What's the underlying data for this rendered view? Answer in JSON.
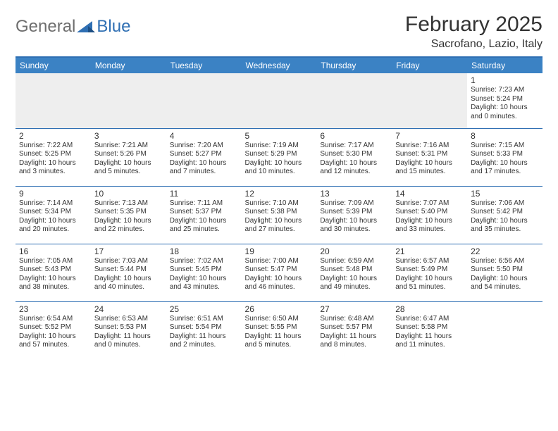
{
  "logo": {
    "general": "General",
    "blue": "Blue"
  },
  "title": "February 2025",
  "location": "Sacrofano, Lazio, Italy",
  "colors": {
    "header_bg": "#3b82c4",
    "header_border": "#2f6fb3",
    "text": "#333333",
    "logo_gray": "#6e6e6e",
    "logo_blue": "#2f6fb3",
    "empty_bg": "#eeeeee"
  },
  "day_headers": [
    "Sunday",
    "Monday",
    "Tuesday",
    "Wednesday",
    "Thursday",
    "Friday",
    "Saturday"
  ],
  "weeks": [
    [
      null,
      null,
      null,
      null,
      null,
      null,
      {
        "n": "1",
        "sr": "Sunrise: 7:23 AM",
        "ss": "Sunset: 5:24 PM",
        "dl1": "Daylight: 10 hours",
        "dl2": "and 0 minutes."
      }
    ],
    [
      {
        "n": "2",
        "sr": "Sunrise: 7:22 AM",
        "ss": "Sunset: 5:25 PM",
        "dl1": "Daylight: 10 hours",
        "dl2": "and 3 minutes."
      },
      {
        "n": "3",
        "sr": "Sunrise: 7:21 AM",
        "ss": "Sunset: 5:26 PM",
        "dl1": "Daylight: 10 hours",
        "dl2": "and 5 minutes."
      },
      {
        "n": "4",
        "sr": "Sunrise: 7:20 AM",
        "ss": "Sunset: 5:27 PM",
        "dl1": "Daylight: 10 hours",
        "dl2": "and 7 minutes."
      },
      {
        "n": "5",
        "sr": "Sunrise: 7:19 AM",
        "ss": "Sunset: 5:29 PM",
        "dl1": "Daylight: 10 hours",
        "dl2": "and 10 minutes."
      },
      {
        "n": "6",
        "sr": "Sunrise: 7:17 AM",
        "ss": "Sunset: 5:30 PM",
        "dl1": "Daylight: 10 hours",
        "dl2": "and 12 minutes."
      },
      {
        "n": "7",
        "sr": "Sunrise: 7:16 AM",
        "ss": "Sunset: 5:31 PM",
        "dl1": "Daylight: 10 hours",
        "dl2": "and 15 minutes."
      },
      {
        "n": "8",
        "sr": "Sunrise: 7:15 AM",
        "ss": "Sunset: 5:33 PM",
        "dl1": "Daylight: 10 hours",
        "dl2": "and 17 minutes."
      }
    ],
    [
      {
        "n": "9",
        "sr": "Sunrise: 7:14 AM",
        "ss": "Sunset: 5:34 PM",
        "dl1": "Daylight: 10 hours",
        "dl2": "and 20 minutes."
      },
      {
        "n": "10",
        "sr": "Sunrise: 7:13 AM",
        "ss": "Sunset: 5:35 PM",
        "dl1": "Daylight: 10 hours",
        "dl2": "and 22 minutes."
      },
      {
        "n": "11",
        "sr": "Sunrise: 7:11 AM",
        "ss": "Sunset: 5:37 PM",
        "dl1": "Daylight: 10 hours",
        "dl2": "and 25 minutes."
      },
      {
        "n": "12",
        "sr": "Sunrise: 7:10 AM",
        "ss": "Sunset: 5:38 PM",
        "dl1": "Daylight: 10 hours",
        "dl2": "and 27 minutes."
      },
      {
        "n": "13",
        "sr": "Sunrise: 7:09 AM",
        "ss": "Sunset: 5:39 PM",
        "dl1": "Daylight: 10 hours",
        "dl2": "and 30 minutes."
      },
      {
        "n": "14",
        "sr": "Sunrise: 7:07 AM",
        "ss": "Sunset: 5:40 PM",
        "dl1": "Daylight: 10 hours",
        "dl2": "and 33 minutes."
      },
      {
        "n": "15",
        "sr": "Sunrise: 7:06 AM",
        "ss": "Sunset: 5:42 PM",
        "dl1": "Daylight: 10 hours",
        "dl2": "and 35 minutes."
      }
    ],
    [
      {
        "n": "16",
        "sr": "Sunrise: 7:05 AM",
        "ss": "Sunset: 5:43 PM",
        "dl1": "Daylight: 10 hours",
        "dl2": "and 38 minutes."
      },
      {
        "n": "17",
        "sr": "Sunrise: 7:03 AM",
        "ss": "Sunset: 5:44 PM",
        "dl1": "Daylight: 10 hours",
        "dl2": "and 40 minutes."
      },
      {
        "n": "18",
        "sr": "Sunrise: 7:02 AM",
        "ss": "Sunset: 5:45 PM",
        "dl1": "Daylight: 10 hours",
        "dl2": "and 43 minutes."
      },
      {
        "n": "19",
        "sr": "Sunrise: 7:00 AM",
        "ss": "Sunset: 5:47 PM",
        "dl1": "Daylight: 10 hours",
        "dl2": "and 46 minutes."
      },
      {
        "n": "20",
        "sr": "Sunrise: 6:59 AM",
        "ss": "Sunset: 5:48 PM",
        "dl1": "Daylight: 10 hours",
        "dl2": "and 49 minutes."
      },
      {
        "n": "21",
        "sr": "Sunrise: 6:57 AM",
        "ss": "Sunset: 5:49 PM",
        "dl1": "Daylight: 10 hours",
        "dl2": "and 51 minutes."
      },
      {
        "n": "22",
        "sr": "Sunrise: 6:56 AM",
        "ss": "Sunset: 5:50 PM",
        "dl1": "Daylight: 10 hours",
        "dl2": "and 54 minutes."
      }
    ],
    [
      {
        "n": "23",
        "sr": "Sunrise: 6:54 AM",
        "ss": "Sunset: 5:52 PM",
        "dl1": "Daylight: 10 hours",
        "dl2": "and 57 minutes."
      },
      {
        "n": "24",
        "sr": "Sunrise: 6:53 AM",
        "ss": "Sunset: 5:53 PM",
        "dl1": "Daylight: 11 hours",
        "dl2": "and 0 minutes."
      },
      {
        "n": "25",
        "sr": "Sunrise: 6:51 AM",
        "ss": "Sunset: 5:54 PM",
        "dl1": "Daylight: 11 hours",
        "dl2": "and 2 minutes."
      },
      {
        "n": "26",
        "sr": "Sunrise: 6:50 AM",
        "ss": "Sunset: 5:55 PM",
        "dl1": "Daylight: 11 hours",
        "dl2": "and 5 minutes."
      },
      {
        "n": "27",
        "sr": "Sunrise: 6:48 AM",
        "ss": "Sunset: 5:57 PM",
        "dl1": "Daylight: 11 hours",
        "dl2": "and 8 minutes."
      },
      {
        "n": "28",
        "sr": "Sunrise: 6:47 AM",
        "ss": "Sunset: 5:58 PM",
        "dl1": "Daylight: 11 hours",
        "dl2": "and 11 minutes."
      },
      null
    ]
  ]
}
